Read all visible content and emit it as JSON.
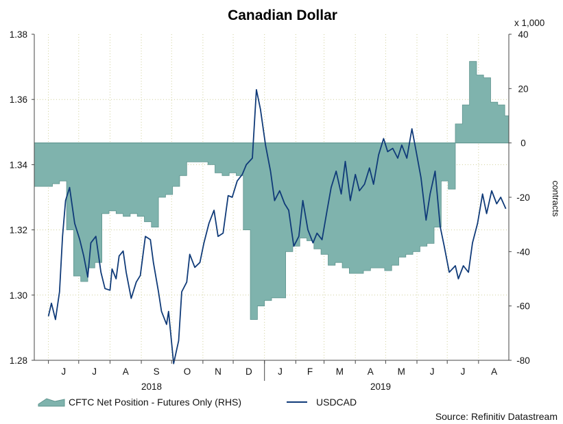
{
  "chart_data": {
    "type": "line",
    "title": "Canadian Dollar",
    "y_left": {
      "range": [
        1.28,
        1.38
      ],
      "ticks": [
        "1.28",
        "1.30",
        "1.32",
        "1.34",
        "1.36",
        "1.38"
      ]
    },
    "y_right": {
      "label": "contracts",
      "multiplier": "x 1,000",
      "range": [
        -80,
        40
      ],
      "ticks": [
        "-80",
        "-60",
        "-40",
        "-20",
        "0",
        "20",
        "40"
      ]
    },
    "x_months": [
      "J",
      "J",
      "A",
      "S",
      "O",
      "N",
      "D",
      "J",
      "F",
      "M",
      "A",
      "M",
      "J",
      "J",
      "A"
    ],
    "x_years": [
      "2018",
      "2019"
    ],
    "grid": true,
    "legend_position": "bottom",
    "source": "Source: Refinitiv Datastream",
    "series": [
      {
        "name": "CFTC Net Position - Futures Only (RHS)",
        "type": "area",
        "axis": "right",
        "color": "#7fb3ad",
        "x": [
          "2018-06-01",
          "2018-06-05",
          "2018-06-12",
          "2018-06-19",
          "2018-06-26",
          "2018-07-03",
          "2018-07-10",
          "2018-07-17",
          "2018-07-24",
          "2018-07-31",
          "2018-08-07",
          "2018-08-14",
          "2018-08-21",
          "2018-08-28",
          "2018-09-04",
          "2018-09-11",
          "2018-09-18",
          "2018-09-25",
          "2018-10-02",
          "2018-10-09",
          "2018-10-16",
          "2018-10-23",
          "2018-10-30",
          "2018-11-06",
          "2018-11-13",
          "2018-11-20",
          "2018-11-27",
          "2018-12-04",
          "2018-12-11",
          "2018-12-18",
          "2018-12-25",
          "2019-01-01",
          "2019-01-08",
          "2019-01-15",
          "2019-01-22",
          "2019-01-29",
          "2019-02-05",
          "2019-02-12",
          "2019-02-19",
          "2019-02-26",
          "2019-03-05",
          "2019-03-12",
          "2019-03-19",
          "2019-03-26",
          "2019-04-02",
          "2019-04-09",
          "2019-04-16",
          "2019-04-23",
          "2019-04-30",
          "2019-05-07",
          "2019-05-14",
          "2019-05-21",
          "2019-05-28",
          "2019-06-04",
          "2019-06-11",
          "2019-06-18",
          "2019-06-25",
          "2019-07-02",
          "2019-07-09",
          "2019-07-16",
          "2019-07-23",
          "2019-07-30",
          "2019-08-06",
          "2019-08-13",
          "2019-08-20",
          "2019-08-27"
        ],
        "values": [
          -16,
          -15,
          -14,
          -32,
          -49,
          -51,
          -46,
          -44,
          -26,
          -25,
          -26,
          -27,
          -26,
          -27,
          -29,
          -31,
          -20,
          -19,
          -16,
          -12,
          -7,
          -7,
          -7,
          -8,
          -11,
          -12,
          -11,
          -12,
          -32,
          -65,
          -60,
          -58,
          -57,
          -57,
          -40,
          -38,
          -35,
          -36,
          -39,
          -41,
          -45,
          -44,
          -46,
          -48,
          -48,
          -47,
          -46,
          -46,
          -47,
          -45,
          -42,
          -41,
          -40,
          -38,
          -37,
          -31,
          -14,
          -17,
          7,
          14,
          30,
          25,
          24,
          15,
          14,
          10
        ]
      },
      {
        "name": "USDCAD",
        "type": "line",
        "axis": "left",
        "color": "#0f3a78",
        "x": [
          "2018-06-01",
          "2018-06-04",
          "2018-06-08",
          "2018-06-12",
          "2018-06-15",
          "2018-06-18",
          "2018-06-22",
          "2018-06-27",
          "2018-07-02",
          "2018-07-06",
          "2018-07-10",
          "2018-07-13",
          "2018-07-18",
          "2018-07-23",
          "2018-07-27",
          "2018-08-01",
          "2018-08-03",
          "2018-08-07",
          "2018-08-10",
          "2018-08-14",
          "2018-08-17",
          "2018-08-22",
          "2018-08-27",
          "2018-08-31",
          "2018-09-05",
          "2018-09-10",
          "2018-09-13",
          "2018-09-18",
          "2018-09-21",
          "2018-09-26",
          "2018-09-28",
          "2018-10-03",
          "2018-10-08",
          "2018-10-11",
          "2018-10-16",
          "2018-10-19",
          "2018-10-24",
          "2018-10-29",
          "2018-11-02",
          "2018-11-07",
          "2018-11-12",
          "2018-11-16",
          "2018-11-21",
          "2018-11-26",
          "2018-11-30",
          "2018-12-05",
          "2018-12-10",
          "2018-12-14",
          "2018-12-20",
          "2018-12-24",
          "2018-12-28",
          "2019-01-02",
          "2019-01-07",
          "2019-01-11",
          "2019-01-16",
          "2019-01-21",
          "2019-01-25",
          "2019-01-30",
          "2019-02-04",
          "2019-02-08",
          "2019-02-13",
          "2019-02-18",
          "2019-02-22",
          "2019-02-27",
          "2019-03-04",
          "2019-03-08",
          "2019-03-13",
          "2019-03-18",
          "2019-03-22",
          "2019-03-27",
          "2019-04-01",
          "2019-04-05",
          "2019-04-10",
          "2019-04-15",
          "2019-04-19",
          "2019-04-24",
          "2019-04-29",
          "2019-05-03",
          "2019-05-08",
          "2019-05-13",
          "2019-05-17",
          "2019-05-22",
          "2019-05-27",
          "2019-05-31",
          "2019-06-05",
          "2019-06-10",
          "2019-06-14",
          "2019-06-19",
          "2019-06-24",
          "2019-06-28",
          "2019-07-03",
          "2019-07-09",
          "2019-07-12",
          "2019-07-17",
          "2019-07-22",
          "2019-07-26",
          "2019-07-31",
          "2019-08-05",
          "2019-08-09",
          "2019-08-14",
          "2019-08-19",
          "2019-08-23",
          "2019-08-28"
        ],
        "values": [
          1.2935,
          1.2975,
          1.2925,
          1.301,
          1.318,
          1.329,
          1.333,
          1.322,
          1.317,
          1.312,
          1.3055,
          1.316,
          1.318,
          1.307,
          1.302,
          1.3015,
          1.308,
          1.305,
          1.312,
          1.3135,
          1.307,
          1.299,
          1.304,
          1.306,
          1.318,
          1.317,
          1.31,
          1.301,
          1.295,
          1.291,
          1.295,
          1.279,
          1.286,
          1.301,
          1.304,
          1.3125,
          1.3085,
          1.31,
          1.316,
          1.322,
          1.326,
          1.318,
          1.319,
          1.3305,
          1.33,
          1.335,
          1.337,
          1.34,
          1.342,
          1.363,
          1.357,
          1.346,
          1.338,
          1.329,
          1.332,
          1.328,
          1.326,
          1.315,
          1.318,
          1.329,
          1.32,
          1.316,
          1.319,
          1.317,
          1.326,
          1.333,
          1.338,
          1.331,
          1.341,
          1.329,
          1.337,
          1.332,
          1.334,
          1.339,
          1.334,
          1.343,
          1.348,
          1.344,
          1.345,
          1.342,
          1.346,
          1.342,
          1.351,
          1.3445,
          1.336,
          1.323,
          1.331,
          1.338,
          1.321,
          1.315,
          1.307,
          1.309,
          1.305,
          1.309,
          1.307,
          1.316,
          1.322,
          1.331,
          1.325,
          1.332,
          1.328,
          1.33,
          1.3265
        ]
      }
    ]
  }
}
